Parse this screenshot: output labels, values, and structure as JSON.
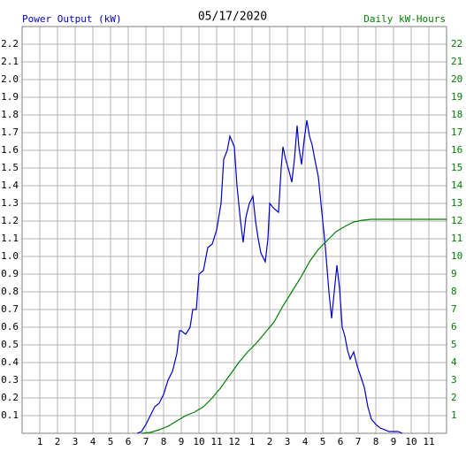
{
  "chart_data": {
    "type": "line",
    "title": "05/17/2020",
    "xlim": [
      0,
      24
    ],
    "xticks": [
      1,
      2,
      3,
      4,
      5,
      6,
      7,
      8,
      9,
      10,
      11,
      {
        "value": 12,
        "label": "12"
      },
      {
        "value": 13,
        "label": "1"
      },
      {
        "value": 14,
        "label": "2"
      },
      {
        "value": 15,
        "label": "3"
      },
      {
        "value": 16,
        "label": "4"
      },
      {
        "value": 17,
        "label": "5"
      },
      {
        "value": 18,
        "label": "6"
      },
      {
        "value": 19,
        "label": "7"
      },
      {
        "value": 20,
        "label": "8"
      },
      {
        "value": 21,
        "label": "9"
      },
      {
        "value": 22,
        "label": "10"
      },
      {
        "value": 23,
        "label": "11"
      }
    ],
    "ylim": [
      0,
      2.3
    ],
    "yticks": [
      0.1,
      0.2,
      0.3,
      0.4,
      0.5,
      0.6,
      0.7,
      0.8,
      0.9,
      {
        "value": 1,
        "label": "1.0"
      },
      1.1,
      1.2,
      1.3,
      1.4,
      1.5,
      1.6,
      1.7,
      1.8,
      1.9,
      {
        "value": 2,
        "label": "2.0"
      },
      2.1,
      2.2
    ],
    "y2lim": [
      0,
      23
    ],
    "y2ticks": [
      1,
      2,
      3,
      4,
      5,
      6,
      7,
      8,
      9,
      10,
      11,
      12,
      13,
      14,
      15,
      16,
      17,
      18,
      19,
      20,
      21,
      22
    ],
    "grid": true,
    "series": [
      {
        "name": "Power Output (kW)",
        "color": "#0000cc",
        "x": [
          6.5,
          6.75,
          7,
          7.25,
          7.5,
          7.75,
          8,
          8.25,
          8.5,
          8.75,
          8.9,
          9,
          9.25,
          9.5,
          9.65,
          9.85,
          10,
          10.25,
          10.5,
          10.75,
          11,
          11.25,
          11.4,
          11.6,
          11.75,
          12,
          12.15,
          12.35,
          12.5,
          12.65,
          12.85,
          13.05,
          13.2,
          13.35,
          13.5,
          13.75,
          13.9,
          14,
          14.25,
          14.5,
          14.65,
          14.75,
          14.9,
          15.1,
          15.25,
          15.4,
          15.55,
          15.65,
          15.8,
          15.95,
          16.1,
          16.25,
          16.4,
          16.55,
          16.75,
          17,
          17.15,
          17.35,
          17.5,
          17.65,
          17.8,
          17.95,
          18.1,
          18.25,
          18.4,
          18.55,
          18.75,
          18.95,
          19.15,
          19.35,
          19.55,
          19.75,
          20,
          20.25,
          20.75,
          21.25,
          21.5
        ],
        "values": [
          0,
          0.01,
          0.05,
          0.1,
          0.15,
          0.17,
          0.22,
          0.3,
          0.35,
          0.45,
          0.58,
          0.58,
          0.56,
          0.6,
          0.7,
          0.7,
          0.9,
          0.92,
          1.05,
          1.07,
          1.15,
          1.3,
          1.55,
          1.6,
          1.68,
          1.62,
          1.4,
          1.2,
          1.08,
          1.22,
          1.3,
          1.34,
          1.2,
          1.1,
          1.02,
          0.97,
          1.1,
          1.3,
          1.27,
          1.25,
          1.5,
          1.62,
          1.55,
          1.48,
          1.42,
          1.55,
          1.74,
          1.62,
          1.52,
          1.66,
          1.77,
          1.68,
          1.63,
          1.55,
          1.45,
          1.2,
          1.05,
          0.8,
          0.65,
          0.8,
          0.95,
          0.82,
          0.6,
          0.55,
          0.47,
          0.42,
          0.46,
          0.38,
          0.32,
          0.26,
          0.15,
          0.08,
          0.05,
          0.03,
          0.01,
          0.01,
          0
        ]
      },
      {
        "name": "Daily kW-Hours",
        "color": "#008000",
        "axis": "y2",
        "x": [
          6.75,
          7.25,
          7.75,
          8.25,
          8.75,
          9.25,
          9.75,
          10.25,
          10.75,
          11.25,
          11.75,
          12.25,
          12.75,
          13.25,
          13.75,
          14.25,
          14.75,
          15.25,
          15.75,
          16.25,
          16.75,
          17.25,
          17.75,
          18.25,
          18.75,
          19.25,
          19.75,
          24
        ],
        "values": [
          0,
          0.05,
          0.2,
          0.4,
          0.7,
          1.0,
          1.2,
          1.5,
          2.0,
          2.6,
          3.3,
          4.0,
          4.6,
          5.1,
          5.7,
          6.3,
          7.2,
          8.0,
          8.8,
          9.7,
          10.4,
          10.9,
          11.4,
          11.7,
          11.95,
          12.05,
          12.1,
          12.1
        ]
      }
    ]
  }
}
